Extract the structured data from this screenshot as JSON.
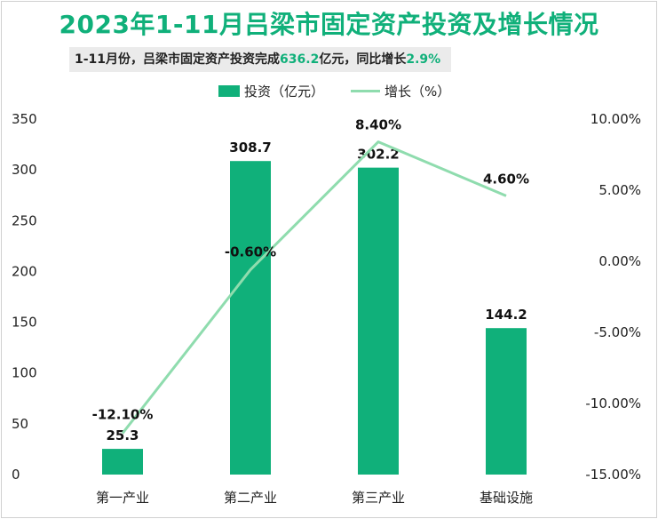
{
  "header": {
    "title": "2023年1-11月吕梁市固定资产投资及增长情况",
    "subtitle_prefix": "1-11月份，吕梁市固定资产投资完成",
    "subtitle_value": "636.2",
    "subtitle_mid": "亿元，同比增长",
    "subtitle_growth": "2.9%"
  },
  "colors": {
    "bar": "#10b07a",
    "line": "#8fdcae",
    "title": "#10b07a"
  },
  "chart_data": {
    "type": "bar",
    "categories": [
      "第一产业",
      "第二产业",
      "第三产业",
      "基础设施"
    ],
    "series": [
      {
        "name": "投资（亿元）",
        "type": "bar",
        "axis": "left",
        "values": [
          25.3,
          308.7,
          302.2,
          144.2
        ],
        "labels": [
          "25.3",
          "308.7",
          "302.2",
          "144.2"
        ]
      },
      {
        "name": "增长（%）",
        "type": "line",
        "axis": "right",
        "values": [
          -12.1,
          -0.6,
          8.4,
          4.6
        ],
        "labels": [
          "-12.10%",
          "-0.60%",
          "8.40%",
          "4.60%"
        ]
      }
    ],
    "y_left": {
      "min": 0,
      "max": 350,
      "ticks": [
        "0",
        "50",
        "100",
        "150",
        "200",
        "250",
        "300",
        "350"
      ]
    },
    "y_right": {
      "min": -15,
      "max": 10,
      "ticks": [
        "-15.00%",
        "-10.00%",
        "-5.00%",
        "0.00%",
        "5.00%",
        "10.00%"
      ]
    },
    "grid": false,
    "legend_position": "top-center"
  }
}
